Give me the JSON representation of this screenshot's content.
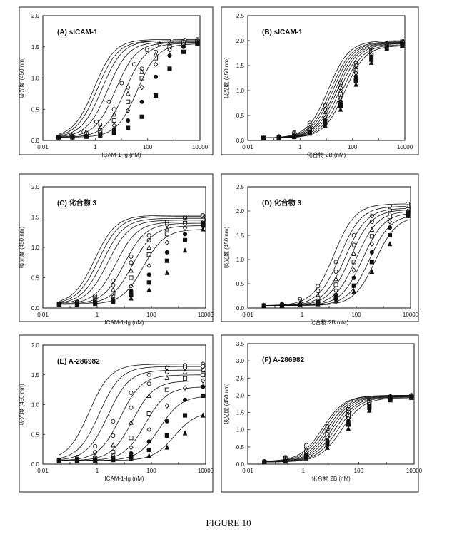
{
  "figure": {
    "caption": "FIGURE 10"
  },
  "colors": {
    "ink": "#111111",
    "panel_border": "#222222"
  },
  "marker_order": [
    "open-circle",
    "open-circle",
    "open-triangle",
    "open-square",
    "open-diamond",
    "filled-circle",
    "filled-square",
    "filled-triangle",
    "filled-diamond"
  ],
  "chart_data": [
    {
      "panel_label": "(A) sICAM-1",
      "type": "line",
      "xscale": "log",
      "xlabel": "ICAM-1-Ig (nM)",
      "ylabel": "吸光度 (450 nm)",
      "xlim": [
        0.01,
        10000
      ],
      "ylim": [
        0,
        2.0
      ],
      "xticks": [
        "0.01",
        "1",
        "100",
        "10000"
      ],
      "yticks": [
        "0.0",
        "0.5",
        "1.0",
        "1.5",
        "2.0"
      ],
      "series": [
        {
          "ec50": 0.9,
          "top": 1.62,
          "values": [
            0.05,
            0.08,
            0.14,
            0.3,
            0.62,
            0.92,
            1.22,
            1.45,
            1.55,
            1.6,
            1.61,
            1.62
          ]
        },
        {
          "ec50": 1.2,
          "top": 1.6,
          "values": [
            0.05,
            0.07,
            0.12,
            0.25,
            0.5,
            0.85,
            1.15,
            1.42,
            1.55,
            1.59,
            1.6
          ]
        },
        {
          "ec50": 1.8,
          "top": 1.6,
          "values": [
            0.05,
            0.06,
            0.1,
            0.2,
            0.42,
            0.75,
            1.1,
            1.38,
            1.52,
            1.58,
            1.6
          ]
        },
        {
          "ec50": 3,
          "top": 1.58,
          "values": [
            0.05,
            0.06,
            0.09,
            0.16,
            0.32,
            0.62,
            1.0,
            1.32,
            1.5,
            1.56,
            1.58
          ]
        },
        {
          "ec50": 6,
          "top": 1.57,
          "values": [
            0.05,
            0.05,
            0.08,
            0.13,
            0.24,
            0.48,
            0.85,
            1.22,
            1.45,
            1.54,
            1.57
          ]
        },
        {
          "ec50": 14,
          "top": 1.56,
          "values": [
            0.05,
            0.05,
            0.07,
            0.1,
            0.17,
            0.32,
            0.62,
            1.02,
            1.36,
            1.5,
            1.56
          ]
        },
        {
          "ec50": 40,
          "top": 1.55,
          "values": [
            0.05,
            0.05,
            0.06,
            0.08,
            0.12,
            0.2,
            0.38,
            0.72,
            1.15,
            1.42,
            1.55
          ]
        }
      ]
    },
    {
      "panel_label": "(B) sICAM-1",
      "type": "line",
      "xscale": "log",
      "xlabel": "化合物 2B (nM)",
      "ylabel": "吸光度 (450 nm)",
      "xlim": [
        0.01,
        10000
      ],
      "ylim": [
        0,
        2.5
      ],
      "xticks": [
        "0.01",
        "1",
        "100",
        "10000"
      ],
      "yticks": [
        "0.0",
        "0.5",
        "1.0",
        "1.5",
        "2.0",
        "2.5"
      ],
      "series": [
        {
          "ec50": 12,
          "top": 2.0,
          "values": [
            0.05,
            0.08,
            0.16,
            0.35,
            0.7,
            1.15,
            1.55,
            1.82,
            1.95,
            2.0
          ]
        },
        {
          "ec50": 15,
          "top": 1.98,
          "values": [
            0.05,
            0.07,
            0.14,
            0.3,
            0.62,
            1.05,
            1.5,
            1.8,
            1.94,
            1.98
          ]
        },
        {
          "ec50": 18,
          "top": 1.97,
          "values": [
            0.05,
            0.07,
            0.12,
            0.26,
            0.55,
            0.98,
            1.45,
            1.78,
            1.93,
            1.97
          ]
        },
        {
          "ec50": 22,
          "top": 1.96,
          "values": [
            0.05,
            0.06,
            0.11,
            0.23,
            0.5,
            0.92,
            1.4,
            1.75,
            1.92,
            1.96
          ]
        },
        {
          "ec50": 26,
          "top": 1.95,
          "values": [
            0.05,
            0.06,
            0.1,
            0.21,
            0.45,
            0.85,
            1.35,
            1.72,
            1.9,
            1.95
          ]
        },
        {
          "ec50": 32,
          "top": 1.94,
          "values": [
            0.05,
            0.06,
            0.09,
            0.18,
            0.4,
            0.78,
            1.28,
            1.68,
            1.88,
            1.94
          ]
        },
        {
          "ec50": 40,
          "top": 1.92,
          "values": [
            0.05,
            0.05,
            0.08,
            0.16,
            0.34,
            0.7,
            1.2,
            1.62,
            1.86,
            1.92
          ]
        },
        {
          "ec50": 50,
          "top": 1.9,
          "values": [
            0.05,
            0.05,
            0.07,
            0.14,
            0.3,
            0.62,
            1.12,
            1.56,
            1.84,
            1.9
          ]
        }
      ]
    },
    {
      "panel_label": "(C) 化合物 3",
      "type": "line",
      "xscale": "log",
      "xlabel": "ICAM-1-Ig (nM)",
      "ylabel": "吸光度 (450 nm)",
      "xlim": [
        0.01,
        10000
      ],
      "ylim": [
        0,
        2.0
      ],
      "xticks": [
        "0.01",
        "1",
        "100",
        "10000"
      ],
      "yticks": [
        "0.0",
        "0.5",
        "1.0",
        "1.5",
        "2.0"
      ],
      "series": [
        {
          "ec50": 0.8,
          "top": 1.53,
          "values": [
            0.06,
            0.1,
            0.2,
            0.45,
            0.85,
            1.2,
            1.42,
            1.5,
            1.53
          ]
        },
        {
          "ec50": 1.1,
          "top": 1.51,
          "values": [
            0.06,
            0.09,
            0.17,
            0.38,
            0.75,
            1.12,
            1.38,
            1.48,
            1.51
          ]
        },
        {
          "ec50": 1.6,
          "top": 1.48,
          "values": [
            0.06,
            0.08,
            0.14,
            0.3,
            0.62,
            1.0,
            1.3,
            1.44,
            1.48
          ]
        },
        {
          "ec50": 2.5,
          "top": 1.45,
          "values": [
            0.06,
            0.07,
            0.12,
            0.24,
            0.5,
            0.88,
            1.22,
            1.4,
            1.45
          ]
        },
        {
          "ec50": 5,
          "top": 1.42,
          "values": [
            0.06,
            0.07,
            0.1,
            0.18,
            0.36,
            0.7,
            1.08,
            1.32,
            1.42
          ]
        },
        {
          "ec50": 10,
          "top": 1.4,
          "values": [
            0.06,
            0.06,
            0.09,
            0.14,
            0.28,
            0.55,
            0.92,
            1.22,
            1.4
          ]
        },
        {
          "ec50": 20,
          "top": 1.36,
          "values": [
            0.06,
            0.06,
            0.08,
            0.12,
            0.22,
            0.42,
            0.78,
            1.12,
            1.36
          ]
        },
        {
          "ec50": 50,
          "top": 1.3,
          "values": [
            0.06,
            0.06,
            0.07,
            0.1,
            0.16,
            0.3,
            0.58,
            0.95,
            1.3
          ]
        }
      ]
    },
    {
      "panel_label": "(D) 化合物 3",
      "type": "line",
      "xscale": "log",
      "xlabel": "化合物 2B (nM)",
      "ylabel": "吸光度 (450 nm)",
      "xlim": [
        0.01,
        10000
      ],
      "ylim": [
        0,
        2.5
      ],
      "xticks": [
        "0.01",
        "1",
        "100",
        "10000"
      ],
      "yticks": [
        "0.0",
        "0.5",
        "1.0",
        "1.5",
        "2.0",
        "2.5"
      ],
      "series": [
        {
          "ec50": 15,
          "top": 2.15,
          "values": [
            0.05,
            0.08,
            0.18,
            0.45,
            0.95,
            1.5,
            1.9,
            2.1,
            2.15
          ]
        },
        {
          "ec50": 25,
          "top": 2.1,
          "values": [
            0.05,
            0.07,
            0.14,
            0.35,
            0.75,
            1.3,
            1.78,
            2.02,
            2.1
          ]
        },
        {
          "ec50": 40,
          "top": 2.06,
          "values": [
            0.05,
            0.06,
            0.11,
            0.26,
            0.6,
            1.12,
            1.62,
            1.95,
            2.06
          ]
        },
        {
          "ec50": 60,
          "top": 2.03,
          "values": [
            0.05,
            0.06,
            0.09,
            0.2,
            0.48,
            0.95,
            1.48,
            1.88,
            2.03
          ]
        },
        {
          "ec50": 100,
          "top": 2.0,
          "values": [
            0.05,
            0.05,
            0.08,
            0.15,
            0.36,
            0.78,
            1.32,
            1.78,
            2.0
          ]
        },
        {
          "ec50": 170,
          "top": 1.97,
          "values": [
            0.05,
            0.05,
            0.07,
            0.12,
            0.27,
            0.62,
            1.15,
            1.66,
            1.97
          ]
        },
        {
          "ec50": 300,
          "top": 1.93,
          "values": [
            0.05,
            0.05,
            0.06,
            0.1,
            0.2,
            0.46,
            0.95,
            1.5,
            1.93
          ]
        },
        {
          "ec50": 500,
          "top": 1.9,
          "values": [
            0.05,
            0.05,
            0.06,
            0.08,
            0.15,
            0.34,
            0.75,
            1.32,
            1.9
          ]
        }
      ]
    },
    {
      "panel_label": "(E) A-286982",
      "type": "line",
      "xscale": "log",
      "xlabel": "ICAM-1-Ig (nM)",
      "ylabel": "吸光度 (450 nm)",
      "xlim": [
        0.01,
        10000
      ],
      "ylim": [
        0,
        2.0
      ],
      "xticks": [
        "0.01",
        "1",
        "100",
        "10000"
      ],
      "yticks": [
        "0.0",
        "0.5",
        "1.0",
        "1.5",
        "2.0"
      ],
      "series": [
        {
          "ec50": 0.5,
          "top": 1.68,
          "values": [
            0.06,
            0.12,
            0.3,
            0.72,
            1.2,
            1.5,
            1.62,
            1.66,
            1.68
          ]
        },
        {
          "ec50": 1.2,
          "top": 1.64,
          "values": [
            0.06,
            0.09,
            0.2,
            0.48,
            0.95,
            1.35,
            1.55,
            1.62,
            1.64
          ]
        },
        {
          "ec50": 2.5,
          "top": 1.58,
          "values": [
            0.06,
            0.08,
            0.14,
            0.32,
            0.7,
            1.15,
            1.45,
            1.55,
            1.58
          ]
        },
        {
          "ec50": 7,
          "top": 1.5,
          "values": [
            0.06,
            0.07,
            0.1,
            0.2,
            0.44,
            0.85,
            1.25,
            1.44,
            1.5
          ]
        },
        {
          "ec50": 20,
          "top": 1.4,
          "values": [
            0.06,
            0.06,
            0.08,
            0.14,
            0.28,
            0.58,
            0.98,
            1.28,
            1.4
          ]
        },
        {
          "ec50": 60,
          "top": 1.3,
          "values": [
            0.06,
            0.06,
            0.07,
            0.1,
            0.18,
            0.38,
            0.72,
            1.08,
            1.3
          ]
        },
        {
          "ec50": 200,
          "top": 1.15,
          "values": [
            0.06,
            0.06,
            0.06,
            0.08,
            0.12,
            0.24,
            0.48,
            0.82,
            1.15
          ]
        },
        {
          "ec50": 700,
          "top": 0.88,
          "values": [
            0.06,
            0.06,
            0.06,
            0.07,
            0.09,
            0.14,
            0.28,
            0.52,
            0.82
          ]
        }
      ]
    },
    {
      "panel_label": "(F) A-286982",
      "type": "line",
      "xscale": "log",
      "xlabel": "化合物 2B (nM)",
      "ylabel": "吸光度 (450 nm)",
      "xlim": [
        0.01,
        10000
      ],
      "ylim": [
        0,
        3.5
      ],
      "xticks": [
        "0.01",
        "1",
        "100",
        "10000"
      ],
      "yticks": [
        "0.0",
        "0.5",
        "1.0",
        "1.5",
        "2.0",
        "2.5",
        "3.0",
        "3.5"
      ],
      "series": [
        {
          "ec50": 5,
          "top": 2.0,
          "values": [
            0.08,
            0.2,
            0.55,
            1.1,
            1.6,
            1.88,
            1.97,
            2.0
          ]
        },
        {
          "ec50": 6,
          "top": 2.0,
          "values": [
            0.07,
            0.17,
            0.48,
            1.0,
            1.52,
            1.85,
            1.96,
            2.0
          ]
        },
        {
          "ec50": 7.5,
          "top": 1.99,
          "values": [
            0.07,
            0.15,
            0.42,
            0.92,
            1.46,
            1.82,
            1.95,
            1.99
          ]
        },
        {
          "ec50": 9,
          "top": 1.98,
          "values": [
            0.06,
            0.13,
            0.36,
            0.85,
            1.4,
            1.78,
            1.94,
            1.98
          ]
        },
        {
          "ec50": 11,
          "top": 1.97,
          "values": [
            0.06,
            0.11,
            0.31,
            0.77,
            1.33,
            1.74,
            1.93,
            1.97
          ]
        },
        {
          "ec50": 14,
          "top": 1.96,
          "values": [
            0.06,
            0.1,
            0.26,
            0.68,
            1.25,
            1.7,
            1.91,
            1.96
          ]
        },
        {
          "ec50": 18,
          "top": 1.95,
          "values": [
            0.06,
            0.09,
            0.21,
            0.58,
            1.15,
            1.64,
            1.89,
            1.95
          ]
        },
        {
          "ec50": 24,
          "top": 1.93,
          "values": [
            0.06,
            0.08,
            0.17,
            0.48,
            1.03,
            1.56,
            1.86,
            1.93
          ]
        }
      ]
    }
  ]
}
